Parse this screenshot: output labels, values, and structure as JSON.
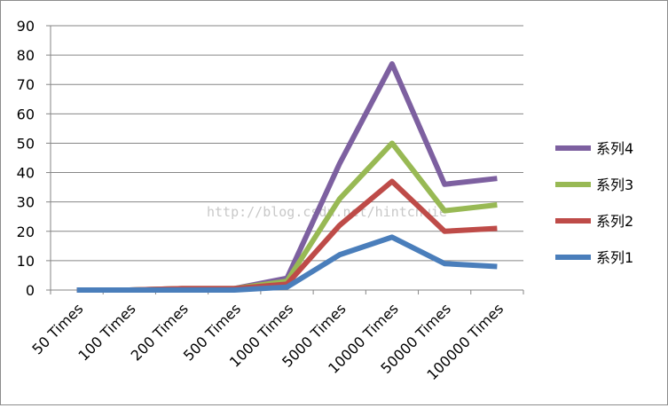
{
  "chart_data": {
    "type": "line",
    "title": "",
    "xlabel": "",
    "ylabel": "",
    "categories": [
      "50 Times",
      "100 Times",
      "200 Times",
      "500 Times",
      "1000 Times",
      "5000 Times",
      "10000 Times",
      "50000 Times",
      "100000 Times"
    ],
    "ylim": [
      0,
      90
    ],
    "yticks": [
      0,
      10,
      20,
      30,
      40,
      50,
      60,
      70,
      80,
      90
    ],
    "grid": "horizontal",
    "legend_position": "right",
    "stacked": true,
    "series": [
      {
        "name": "系列1",
        "color": "#4a7ebb",
        "values": [
          0,
          0,
          0,
          0,
          1,
          12,
          18,
          9,
          8
        ]
      },
      {
        "name": "系列2",
        "color": "#be4b48",
        "values": [
          0,
          0,
          0.5,
          0.5,
          1,
          10,
          19,
          11,
          13
        ]
      },
      {
        "name": "系列3",
        "color": "#98b954",
        "values": [
          0,
          0,
          0,
          0,
          1,
          9,
          13,
          7,
          8
        ]
      },
      {
        "name": "系列4",
        "color": "#7d60a0",
        "values": [
          0,
          0,
          0,
          0,
          1,
          12,
          27,
          9,
          9
        ]
      }
    ]
  },
  "watermark": "http://blog.csdn.net/hintcnuie"
}
